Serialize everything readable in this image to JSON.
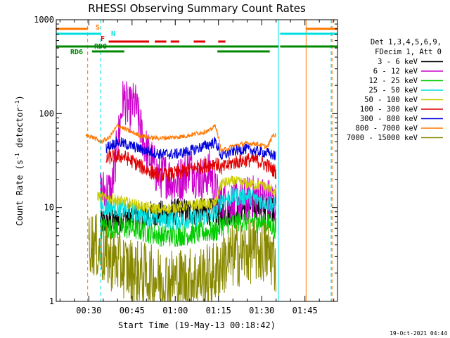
{
  "chart_data": {
    "type": "line",
    "title": "RHESSI Observing Summary Count Rates",
    "xlabel": "Start Time (19-May-13 00:18:42)",
    "ylabel": "Count Rate (s",
    "ylabel_sup1": "-1",
    "ylabel_mid": " detector",
    "ylabel_sup2": "-1",
    "ylabel_end": ")",
    "x_ticks": [
      {
        "t": 30,
        "label": "00:30"
      },
      {
        "t": 45,
        "label": "00:45"
      },
      {
        "t": 60,
        "label": "01:00"
      },
      {
        "t": 75,
        "label": "01:15"
      },
      {
        "t": 90,
        "label": "01:30"
      },
      {
        "t": 105,
        "label": "01:45"
      }
    ],
    "xlim": [
      18.7,
      116.3
    ],
    "y_ticks": [
      {
        "v": 1,
        "label": "1"
      },
      {
        "v": 10,
        "label": "10"
      },
      {
        "v": 100,
        "label": "100"
      },
      {
        "v": 1000,
        "label": "1000"
      }
    ],
    "ylim": [
      1,
      1000
    ],
    "y_scale": "log",
    "timestamp": "19-Oct-2021 04:44",
    "legend_header": [
      "Det 1,3,4,5,6,9,",
      "FDecim 1, Att 0"
    ],
    "series": [
      {
        "name": "3 - 6 keV",
        "color": "#000000",
        "gap": [
          34,
          95
        ],
        "knots": [
          [
            34,
            7
          ],
          [
            38,
            7
          ],
          [
            42,
            8
          ],
          [
            47,
            8
          ],
          [
            52,
            8.5
          ],
          [
            56,
            8.5
          ],
          [
            60,
            9
          ],
          [
            65,
            9
          ],
          [
            70,
            9
          ],
          [
            74,
            9
          ],
          [
            76,
            8.5
          ],
          [
            80,
            9
          ],
          [
            84,
            10
          ],
          [
            88,
            10.5
          ],
          [
            92,
            10
          ],
          [
            95,
            10
          ]
        ],
        "noise": 0.15
      },
      {
        "name": "6 - 12 keV",
        "color": "#cc00cc",
        "gap": [
          34,
          95
        ],
        "knots": [
          [
            34,
            15
          ],
          [
            38,
            15
          ],
          [
            40,
            50
          ],
          [
            42,
            150
          ],
          [
            44,
            110
          ],
          [
            46,
            130
          ],
          [
            48,
            70
          ],
          [
            50,
            40
          ],
          [
            52,
            30
          ],
          [
            54,
            22
          ],
          [
            57,
            22
          ],
          [
            60,
            18
          ],
          [
            63,
            22
          ],
          [
            65,
            28
          ],
          [
            67,
            22
          ],
          [
            70,
            20
          ],
          [
            72,
            25
          ],
          [
            74,
            14
          ],
          [
            76,
            12
          ],
          [
            80,
            11
          ],
          [
            84,
            12
          ],
          [
            88,
            13
          ],
          [
            92,
            12
          ],
          [
            95,
            11
          ]
        ],
        "noise": 0.25
      },
      {
        "name": "12 - 25 keV",
        "color": "#00cc00",
        "gap": [
          34,
          95
        ],
        "knots": [
          [
            31,
            7
          ],
          [
            34,
            6
          ],
          [
            40,
            6
          ],
          [
            45,
            6
          ],
          [
            50,
            5.5
          ],
          [
            55,
            5
          ],
          [
            60,
            5
          ],
          [
            65,
            5.2
          ],
          [
            70,
            5.5
          ],
          [
            74,
            5.5
          ],
          [
            76,
            6.5
          ],
          [
            80,
            7
          ],
          [
            85,
            7.2
          ],
          [
            90,
            7
          ],
          [
            93,
            6.5
          ],
          [
            95,
            6
          ]
        ],
        "noise": 0.12
      },
      {
        "name": "25 - 50 keV",
        "color": "#00e0e0",
        "gap": [
          34,
          95
        ],
        "knots": [
          [
            33,
            11
          ],
          [
            36,
            10
          ],
          [
            40,
            10
          ],
          [
            45,
            9
          ],
          [
            50,
            8
          ],
          [
            55,
            7.5
          ],
          [
            60,
            7.2
          ],
          [
            65,
            7.5
          ],
          [
            70,
            8
          ],
          [
            74,
            8.5
          ],
          [
            76,
            12
          ],
          [
            80,
            13
          ],
          [
            85,
            13
          ],
          [
            90,
            12
          ],
          [
            93,
            11
          ],
          [
            95,
            10
          ]
        ],
        "noise": 0.1
      },
      {
        "name": "50 - 100 keV",
        "color": "#cccc00",
        "gap": [
          33,
          95
        ],
        "knots": [
          [
            31,
            14
          ],
          [
            34,
            13
          ],
          [
            40,
            12
          ],
          [
            45,
            11
          ],
          [
            50,
            10
          ],
          [
            55,
            9.5
          ],
          [
            60,
            10
          ],
          [
            65,
            10.5
          ],
          [
            70,
            11
          ],
          [
            74,
            11
          ],
          [
            76,
            18
          ],
          [
            80,
            19
          ],
          [
            85,
            18
          ],
          [
            90,
            17
          ],
          [
            93,
            16
          ],
          [
            95,
            14
          ]
        ],
        "noise": 0.06
      },
      {
        "name": "100 - 300 keV",
        "color": "#e00000",
        "gap": [
          36,
          95
        ],
        "knots": [
          [
            31,
            30
          ],
          [
            34,
            30
          ],
          [
            38,
            35
          ],
          [
            42,
            35
          ],
          [
            46,
            30
          ],
          [
            50,
            25
          ],
          [
            55,
            22
          ],
          [
            60,
            23
          ],
          [
            65,
            25
          ],
          [
            70,
            28
          ],
          [
            74,
            30
          ],
          [
            76,
            26
          ],
          [
            80,
            30
          ],
          [
            85,
            32
          ],
          [
            88,
            32
          ],
          [
            92,
            28
          ],
          [
            94,
            25
          ],
          [
            95,
            24
          ]
        ],
        "noise": 0.08
      },
      {
        "name": "300 - 800 keV",
        "color": "#0000dd",
        "gap": [
          36,
          95
        ],
        "knots": [
          [
            34,
            40
          ],
          [
            37,
            45
          ],
          [
            40,
            50
          ],
          [
            45,
            45
          ],
          [
            50,
            40
          ],
          [
            55,
            37
          ],
          [
            60,
            37
          ],
          [
            65,
            40
          ],
          [
            70,
            45
          ],
          [
            74,
            50
          ],
          [
            76,
            35
          ],
          [
            80,
            40
          ],
          [
            84,
            42
          ],
          [
            88,
            40
          ],
          [
            92,
            38
          ],
          [
            95,
            35
          ]
        ],
        "noise": 0.06
      },
      {
        "name": "800 - 7000 keV",
        "color": "#ff7700",
        "gap": [
          29,
          95
        ],
        "knots": [
          [
            29,
            58
          ],
          [
            30,
            58
          ],
          [
            32,
            55
          ],
          [
            34,
            50
          ],
          [
            37,
            55
          ],
          [
            40,
            75
          ],
          [
            44,
            65
          ],
          [
            48,
            58
          ],
          [
            52,
            55
          ],
          [
            56,
            55
          ],
          [
            60,
            56
          ],
          [
            64,
            58
          ],
          [
            68,
            62
          ],
          [
            72,
            66
          ],
          [
            74,
            75
          ],
          [
            76,
            40
          ],
          [
            80,
            45
          ],
          [
            84,
            48
          ],
          [
            88,
            48
          ],
          [
            92,
            44
          ],
          [
            94,
            60
          ],
          [
            95,
            58
          ]
        ],
        "noise": 0.025
      },
      {
        "name": "7000 - 15000 keV",
        "color": "#888800",
        "gap": [
          30,
          95
        ],
        "knots": [
          [
            30,
            4.5
          ],
          [
            32,
            4
          ],
          [
            34,
            3.5
          ],
          [
            36,
            3
          ],
          [
            40,
            2.6
          ],
          [
            44,
            2.2
          ],
          [
            48,
            2
          ],
          [
            52,
            1.8
          ],
          [
            56,
            1.7
          ],
          [
            60,
            1.7
          ],
          [
            64,
            1.7
          ],
          [
            68,
            1.8
          ],
          [
            72,
            1.9
          ],
          [
            74,
            2
          ],
          [
            76,
            2.5
          ],
          [
            80,
            3
          ],
          [
            84,
            3.3
          ],
          [
            88,
            3.5
          ],
          [
            92,
            3.3
          ],
          [
            94,
            3
          ],
          [
            95,
            2.5
          ]
        ],
        "noise": 0.35
      }
    ],
    "flags": [
      {
        "label": "S",
        "color": "#ff7700",
        "segments": [
          [
            18.7,
            29.6
          ],
          [
            105.4,
            116.3
          ]
        ]
      },
      {
        "label": "N",
        "color": "#00e0e0",
        "segments": [
          [
            18.7,
            34.1
          ],
          [
            96.4,
            116.3
          ]
        ]
      },
      {
        "label": "F",
        "color": "#e00000",
        "segments": [
          [
            36.9,
            50.9
          ],
          [
            52.9,
            56.9
          ],
          [
            58.4,
            61.4
          ],
          [
            66.4,
            70.4
          ],
          [
            74.9,
            77.4
          ]
        ]
      },
      {
        "label": "RDO",
        "color": "#008800",
        "segments": [
          [
            18.7,
            95.8
          ],
          [
            96.4,
            116.3
          ]
        ]
      },
      {
        "label": "RD6",
        "color": "#008800",
        "segments": [
          [
            31.1,
            42.3
          ],
          [
            74.6,
            92.8
          ]
        ]
      }
    ],
    "vlines": [
      {
        "t": 29.6,
        "color": "#ff7700",
        "dash": true
      },
      {
        "t": 34.1,
        "color": "#00e0e0",
        "dash": true
      },
      {
        "t": 95.8,
        "color": "#00e0e0",
        "dash": false
      },
      {
        "t": 105.4,
        "color": "#ff7700",
        "dash": false
      },
      {
        "t": 114.1,
        "color": "#00e0e0",
        "dash": true
      },
      {
        "t": 114.4,
        "color": "#ff7700",
        "dash": true
      }
    ]
  }
}
